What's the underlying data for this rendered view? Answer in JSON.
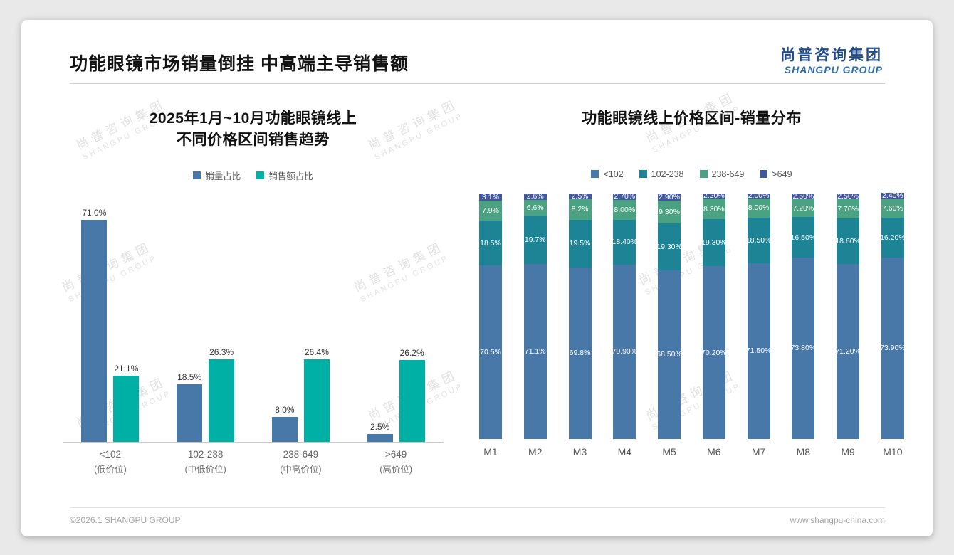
{
  "page": {
    "title": "功能眼镜市场销量倒挂 中高端主导销售额",
    "logo": {
      "cn": "尚普咨询集团",
      "en": "SHANGPU GROUP"
    },
    "watermark": {
      "cn": "尚普咨询集团",
      "en": "SHANGPU GROUP"
    },
    "footer": {
      "left": "©2026.1 SHANGPU GROUP",
      "right": "www.shangpu-china.com"
    }
  },
  "colors": {
    "volume_blue": "#4878a8",
    "revenue_teal": "#00b0a5",
    "stack_teal": "#1d8496",
    "stack_green": "#4ba283",
    "stack_navy": "#42579c"
  },
  "chart_data": [
    {
      "type": "bar",
      "title_lines": [
        "2025年1月~10月功能眼镜线上",
        "不同价格区间销售趋势"
      ],
      "legend_position": "top",
      "grid": false,
      "ylim": [
        0,
        80
      ],
      "value_suffix": "%",
      "categories": [
        "<102",
        "102-238",
        "238-649",
        ">649"
      ],
      "category_sublabels": [
        "(低价位)",
        "(中低价位)",
        "(中高价位)",
        "(高价位)"
      ],
      "series": [
        {
          "name": "销量占比",
          "color": "#4878a8",
          "values": [
            71.0,
            18.5,
            8.0,
            2.5
          ],
          "labels": [
            "71.0%",
            "18.5%",
            "8.0%",
            "2.5%"
          ]
        },
        {
          "name": "销售额占比",
          "color": "#00b0a5",
          "values": [
            21.1,
            26.3,
            26.4,
            26.2
          ],
          "labels": [
            "21.1%",
            "26.3%",
            "26.4%",
            "26.2%"
          ]
        }
      ]
    },
    {
      "type": "stacked-bar-100",
      "title": "功能眼镜线上价格区间-销量分布",
      "legend_position": "top",
      "grid": false,
      "ylim": [
        0,
        100
      ],
      "value_suffix": "%",
      "categories": [
        "M1",
        "M2",
        "M3",
        "M4",
        "M5",
        "M6",
        "M7",
        "M8",
        "M9",
        "M10"
      ],
      "series": [
        {
          "name": "<102",
          "color": "#4878a8",
          "values": [
            70.5,
            71.1,
            69.8,
            70.9,
            68.5,
            70.2,
            71.5,
            73.8,
            71.2,
            73.9
          ],
          "labels": [
            "70.5%",
            "71.1%",
            "69.8%",
            "70.90%",
            "68.50%",
            "70.20%",
            "71.50%",
            "73.80%",
            "71.20%",
            "73.90%"
          ]
        },
        {
          "name": "102-238",
          "color": "#1d8496",
          "values": [
            18.5,
            19.7,
            19.5,
            18.4,
            19.3,
            19.3,
            18.5,
            16.5,
            18.6,
            16.2
          ],
          "labels": [
            "18.5%",
            "19.7%",
            "19.5%",
            "18.40%",
            "19.30%",
            "19.30%",
            "18.50%",
            "16.50%",
            "18.60%",
            "16.20%"
          ]
        },
        {
          "name": "238-649",
          "color": "#4ba283",
          "values": [
            7.9,
            6.6,
            8.2,
            8.0,
            9.3,
            8.3,
            8.0,
            7.2,
            7.7,
            7.6
          ],
          "labels": [
            "7.9%",
            "6.6%",
            "8.2%",
            "8.00%",
            "9.30%",
            "8.30%",
            "8.00%",
            "7.20%",
            "7.70%",
            "7.60%"
          ]
        },
        {
          "name": ">649",
          "color": "#42579c",
          "values": [
            3.1,
            2.6,
            2.5,
            2.7,
            2.9,
            2.2,
            2.0,
            2.5,
            2.5,
            2.4
          ],
          "labels": [
            "3.1%",
            "2.6%",
            "2.5%",
            "2.70%",
            "2.90%",
            "2.20%",
            "2.00%",
            "2.50%",
            "2.50%",
            "2.40%"
          ]
        }
      ]
    }
  ]
}
